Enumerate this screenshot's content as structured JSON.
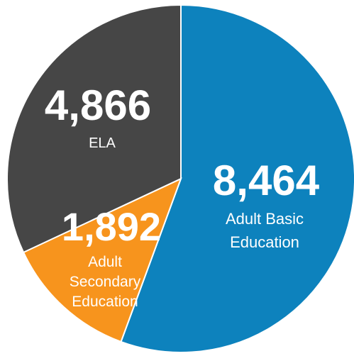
{
  "chart_data": {
    "type": "pie",
    "slices": [
      {
        "label": "Adult Basic Education",
        "value": 8464,
        "value_text": "8,464",
        "color": "#0d82bd"
      },
      {
        "label": "Adult Secondary Education",
        "value": 1892,
        "value_text": "1,892",
        "color": "#f7941d"
      },
      {
        "label": "ELA",
        "value": 4866,
        "value_text": "4,866",
        "color": "#464646"
      }
    ],
    "start": "12 o'clock",
    "direction": "clockwise"
  }
}
